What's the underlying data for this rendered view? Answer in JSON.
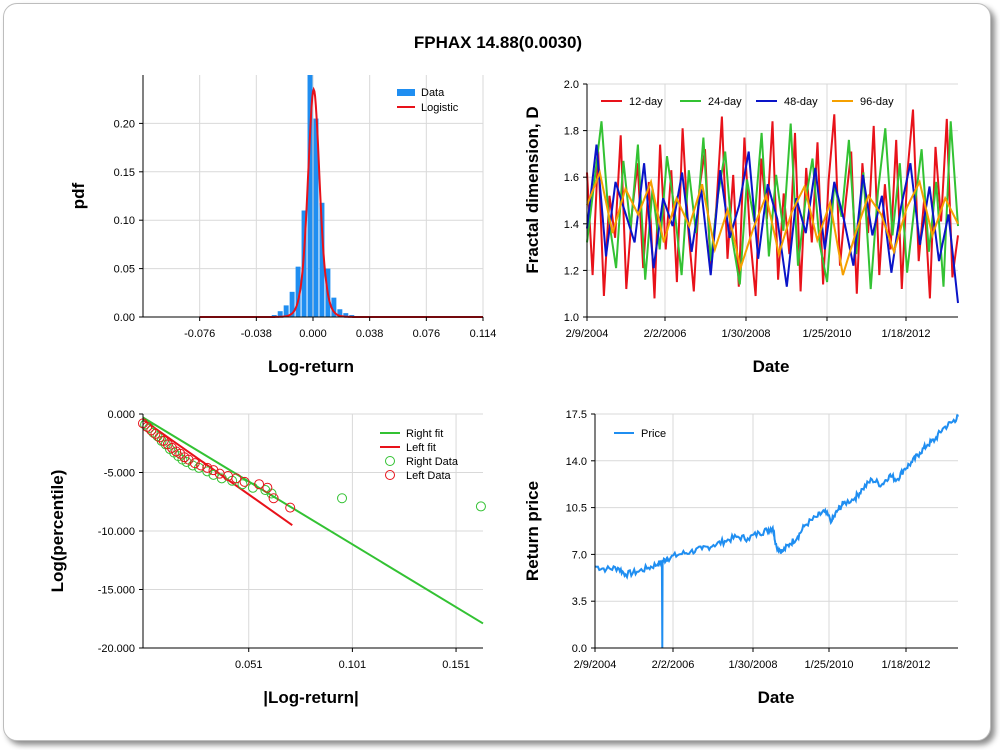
{
  "title": "FPHAX 14.88(0.0030)",
  "colors": {
    "data_bar": "#1f8ef1",
    "logistic": "#e8121a",
    "d12": "#e8121a",
    "d24": "#33c233",
    "d48": "#0a14c8",
    "d96": "#f5a000",
    "right": "#33c233",
    "left": "#e8121a",
    "price": "#1f8ef1"
  },
  "chart_data": [
    {
      "id": "pdf",
      "type": "bar",
      "xlabel": "Log-return",
      "ylabel": "pdf",
      "x_ticks": [
        "-0.076",
        "-0.038",
        "0.000",
        "0.038",
        "0.076",
        "0.114"
      ],
      "y_ticks": [
        "0.00",
        "0.05",
        "0.10",
        "0.15",
        "0.20"
      ],
      "xlim": [
        -0.114,
        0.114
      ],
      "ylim": [
        0,
        0.25
      ],
      "legend": [
        "Data",
        "Logistic"
      ],
      "legend_position": "top-right",
      "bin_width": 0.004,
      "bins": [
        {
          "x": -0.026,
          "v": 0.002
        },
        {
          "x": -0.022,
          "v": 0.006
        },
        {
          "x": -0.018,
          "v": 0.012
        },
        {
          "x": -0.014,
          "v": 0.026
        },
        {
          "x": -0.01,
          "v": 0.052
        },
        {
          "x": -0.006,
          "v": 0.11
        },
        {
          "x": -0.002,
          "v": 0.25
        },
        {
          "x": 0.002,
          "v": 0.205
        },
        {
          "x": 0.006,
          "v": 0.118
        },
        {
          "x": 0.01,
          "v": 0.05
        },
        {
          "x": 0.014,
          "v": 0.02
        },
        {
          "x": 0.018,
          "v": 0.008
        },
        {
          "x": 0.022,
          "v": 0.004
        },
        {
          "x": 0.026,
          "v": 0.002
        },
        {
          "x": 0.03,
          "v": 0.001
        }
      ],
      "logistic": {
        "mu": 0.0005,
        "s": 0.00105,
        "xmin": -0.076,
        "xmax": 0.114
      }
    },
    {
      "id": "fractal",
      "type": "line",
      "xlabel": "Date",
      "ylabel": "Fractal dimension, D",
      "x_ticks": [
        "2/9/2004",
        "2/2/2006",
        "1/30/2008",
        "1/25/2010",
        "1/18/2012"
      ],
      "y_ticks": [
        "1.0",
        "1.2",
        "1.4",
        "1.6",
        "1.8",
        "2.0"
      ],
      "ylim": [
        1.0,
        2.0
      ],
      "legend_position": "top",
      "series": [
        {
          "name": "12-day",
          "window": 12,
          "values": [
            1.62,
            1.18,
            1.71,
            1.09,
            1.52,
            1.34,
            1.78,
            1.12,
            1.45,
            1.66,
            1.21,
            1.58,
            1.08,
            1.74,
            1.29,
            1.63,
            1.15,
            1.81,
            1.38,
            1.11,
            1.55,
            1.72,
            1.19,
            1.47,
            1.86,
            1.25,
            1.61,
            1.13,
            1.77,
            1.35,
            1.09,
            1.68,
            1.42,
            1.84,
            1.16,
            1.53,
            1.27,
            1.79,
            1.11,
            1.64,
            1.32,
            1.75,
            1.14,
            1.59,
            1.87,
            1.22,
            1.49,
            1.71,
            1.1,
            1.66,
            1.36,
            1.82,
            1.18,
            1.57,
            1.29,
            1.76,
            1.12,
            1.62,
            1.89,
            1.24,
            1.51,
            1.08,
            1.73,
            1.41,
            1.85,
            1.17,
            1.35
          ]
        },
        {
          "name": "24-day",
          "window": 24,
          "values": [
            1.32,
            1.58,
            1.84,
            1.42,
            1.21,
            1.67,
            1.38,
            1.74,
            1.16,
            1.55,
            1.29,
            1.69,
            1.47,
            1.18,
            1.63,
            1.36,
            1.77,
            1.24,
            1.52,
            1.71,
            1.33,
            1.14,
            1.59,
            1.41,
            1.79,
            1.26,
            1.61,
            1.37,
            1.83,
            1.22,
            1.49,
            1.68,
            1.31,
            1.15,
            1.57,
            1.43,
            1.76,
            1.27,
            1.62,
            1.12,
            1.54,
            1.81,
            1.35,
            1.66,
            1.19,
            1.47,
            1.72,
            1.28,
            1.58,
            1.13,
            1.84,
            1.39
          ]
        },
        {
          "name": "48-day",
          "window": 48,
          "values": [
            1.38,
            1.74,
            1.26,
            1.58,
            1.45,
            1.32,
            1.66,
            1.21,
            1.51,
            1.39,
            1.62,
            1.28,
            1.55,
            1.18,
            1.63,
            1.34,
            1.48,
            1.71,
            1.25,
            1.57,
            1.42,
            1.13,
            1.51,
            1.36,
            1.64,
            1.29,
            1.58,
            1.42,
            1.22,
            1.61,
            1.35,
            1.52,
            1.19,
            1.47,
            1.66,
            1.31,
            1.56,
            1.24,
            1.44,
            1.06
          ]
        },
        {
          "name": "96-day",
          "window": 96,
          "values": [
            1.48,
            1.62,
            1.36,
            1.55,
            1.44,
            1.58,
            1.32,
            1.51,
            1.39,
            1.57,
            1.29,
            1.46,
            1.21,
            1.38,
            1.52,
            1.27,
            1.45,
            1.56,
            1.33,
            1.49,
            1.18,
            1.36,
            1.52,
            1.44,
            1.28,
            1.47,
            1.58,
            1.35,
            1.51,
            1.4
          ]
        }
      ]
    },
    {
      "id": "tail",
      "type": "scatter",
      "xlabel": "|Log-return|",
      "ylabel": "Log(percentile)",
      "x_ticks": [
        "0.051",
        "0.101",
        "0.151"
      ],
      "y_ticks": [
        "0.000",
        "-5.000",
        "-10.000",
        "-15.000",
        "-20.000"
      ],
      "xlim": [
        0.0,
        0.164
      ],
      "ylim": [
        -20,
        0
      ],
      "legend": [
        "Right fit",
        "Left fit",
        "Right Data",
        "Left Data"
      ],
      "legend_position": "top-right",
      "right_fit": [
        [
          0.0,
          -0.3
        ],
        [
          0.164,
          -17.9
        ]
      ],
      "left_fit": [
        [
          0.0,
          -0.5
        ],
        [
          0.072,
          -9.5
        ]
      ],
      "right_data": [
        [
          0.001,
          -0.9
        ],
        [
          0.003,
          -1.2
        ],
        [
          0.005,
          -1.6
        ],
        [
          0.007,
          -1.9
        ],
        [
          0.009,
          -2.3
        ],
        [
          0.011,
          -2.6
        ],
        [
          0.013,
          -3.0
        ],
        [
          0.015,
          -3.3
        ],
        [
          0.017,
          -3.6
        ],
        [
          0.019,
          -3.9
        ],
        [
          0.021,
          -4.1
        ],
        [
          0.024,
          -4.4
        ],
        [
          0.027,
          -4.6
        ],
        [
          0.031,
          -4.9
        ],
        [
          0.034,
          -5.2
        ],
        [
          0.038,
          -5.5
        ],
        [
          0.043,
          -5.7
        ],
        [
          0.048,
          -6.0
        ],
        [
          0.053,
          -6.3
        ],
        [
          0.059,
          -6.5
        ],
        [
          0.062,
          -6.8
        ],
        [
          0.096,
          -7.2
        ],
        [
          0.163,
          -7.9
        ]
      ],
      "left_data": [
        [
          0.0,
          -0.8
        ],
        [
          0.002,
          -1.1
        ],
        [
          0.004,
          -1.4
        ],
        [
          0.006,
          -1.7
        ],
        [
          0.008,
          -2.0
        ],
        [
          0.01,
          -2.3
        ],
        [
          0.012,
          -2.6
        ],
        [
          0.014,
          -2.9
        ],
        [
          0.016,
          -3.2
        ],
        [
          0.018,
          -3.4
        ],
        [
          0.02,
          -3.7
        ],
        [
          0.022,
          -3.9
        ],
        [
          0.025,
          -4.2
        ],
        [
          0.028,
          -4.4
        ],
        [
          0.031,
          -4.6
        ],
        [
          0.034,
          -4.8
        ],
        [
          0.037,
          -5.1
        ],
        [
          0.041,
          -5.3
        ],
        [
          0.045,
          -5.5
        ],
        [
          0.049,
          -5.8
        ],
        [
          0.056,
          -6.0
        ],
        [
          0.06,
          -6.3
        ],
        [
          0.063,
          -7.2
        ],
        [
          0.071,
          -8.0
        ]
      ]
    },
    {
      "id": "price",
      "type": "line",
      "xlabel": "Date",
      "ylabel": "Return price",
      "x_ticks": [
        "2/9/2004",
        "2/2/2006",
        "1/30/2008",
        "1/25/2010",
        "1/18/2012"
      ],
      "y_ticks": [
        "0.0",
        "3.5",
        "7.0",
        "10.5",
        "14.0",
        "17.5"
      ],
      "ylim": [
        0,
        17.5
      ],
      "legend": [
        "Price"
      ],
      "legend_position": "top-left",
      "series": [
        {
          "name": "Price",
          "x_years": [
            2004.1,
            2004.4,
            2004.7,
            2004.9,
            2005.2,
            2005.5,
            2005.75,
            2005.85,
            2005.86,
            2005.87,
            2006.0,
            2006.3,
            2006.6,
            2006.9,
            2007.2,
            2007.5,
            2007.8,
            2008.1,
            2008.4,
            2008.6,
            2008.75,
            2008.85,
            2009.0,
            2009.2,
            2009.4,
            2009.6,
            2009.9,
            2010.1,
            2010.3,
            2010.45,
            2010.6,
            2010.9,
            2011.1,
            2011.35,
            2011.6,
            2011.8,
            2012.0,
            2012.2,
            2012.4,
            2012.6,
            2012.8,
            2013.0,
            2013.2,
            2013.45,
            2013.6
          ],
          "values": [
            6.1,
            5.9,
            6.0,
            5.5,
            5.7,
            6.0,
            6.3,
            6.4,
            0.0,
            6.5,
            6.7,
            7.0,
            7.2,
            7.4,
            7.7,
            8.0,
            8.3,
            8.2,
            8.6,
            8.8,
            9.0,
            7.6,
            7.2,
            7.8,
            8.3,
            9.2,
            9.8,
            10.2,
            9.5,
            10.3,
            10.8,
            11.2,
            11.9,
            12.6,
            12.2,
            12.9,
            12.6,
            13.4,
            13.9,
            14.6,
            15.2,
            15.6,
            16.4,
            16.9,
            17.3
          ]
        }
      ]
    }
  ]
}
